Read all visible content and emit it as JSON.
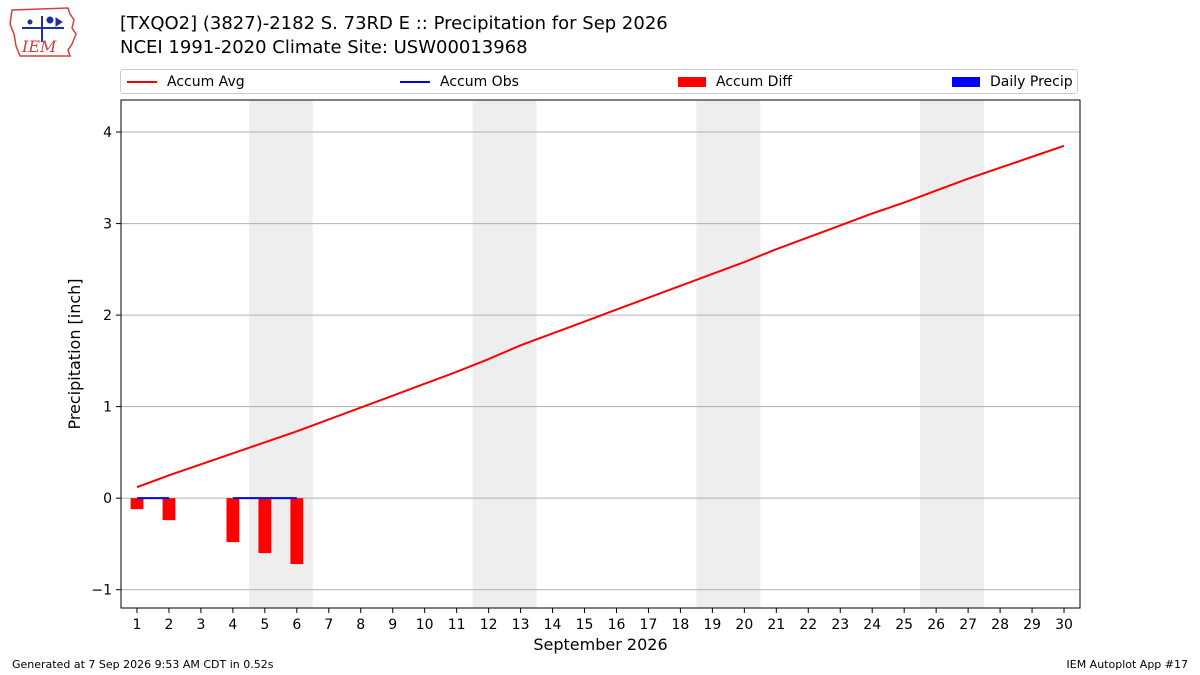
{
  "header": {
    "title_line1": "[TXQO2] (3827)-2182 S. 73RD E :: Precipitation for Sep 2026",
    "title_line2": "NCEI 1991-2020 Climate Site: USW00013968",
    "logo_text": "IEM"
  },
  "footer": {
    "left": "Generated at 7 Sep 2026 9:53 AM CDT in 0.52s",
    "right": "IEM Autoplot App #17"
  },
  "colors": {
    "accum_avg": "#ff0000",
    "accum_obs": "#0000ff",
    "accum_diff": "#ff0000",
    "daily_precip": "#0000ff",
    "weekend_shade": "#eeeeee",
    "grid": "#b0b0b0"
  },
  "chart_data": {
    "type": "line",
    "title": "[TXQO2] (3827)-2182 S. 73RD E :: Precipitation for Sep 2026",
    "subtitle": "NCEI 1991-2020 Climate Site: USW00013968",
    "xlabel": "September 2026",
    "ylabel": "Precipitation [inch]",
    "xlim": [
      0.5,
      30.5
    ],
    "ylim": [
      -1.2,
      4.35
    ],
    "x_ticks": [
      1,
      2,
      3,
      4,
      5,
      6,
      7,
      8,
      9,
      10,
      11,
      12,
      13,
      14,
      15,
      16,
      17,
      18,
      19,
      20,
      21,
      22,
      23,
      24,
      25,
      26,
      27,
      28,
      29,
      30
    ],
    "y_ticks": [
      -1,
      0,
      1,
      2,
      3,
      4
    ],
    "y_tick_labels": [
      "−1",
      "0",
      "1",
      "2",
      "3",
      "4"
    ],
    "grid": "horizontal",
    "legend_placement": "top",
    "weekend_shading": [
      [
        5,
        6
      ],
      [
        12,
        13
      ],
      [
        19,
        20
      ],
      [
        26,
        27
      ]
    ],
    "series": [
      {
        "name": "Accum Avg",
        "type": "line",
        "x": [
          1,
          2,
          3,
          4,
          5,
          6,
          7,
          8,
          9,
          10,
          11,
          12,
          13,
          14,
          15,
          16,
          17,
          18,
          19,
          20,
          21,
          22,
          23,
          24,
          25,
          26,
          27,
          28,
          29,
          30
        ],
        "values": [
          0.12,
          0.25,
          0.37,
          0.49,
          0.61,
          0.73,
          0.86,
          0.99,
          1.12,
          1.25,
          1.38,
          1.52,
          1.67,
          1.8,
          1.93,
          2.06,
          2.19,
          2.32,
          2.45,
          2.58,
          2.72,
          2.85,
          2.98,
          3.11,
          3.23,
          3.36,
          3.49,
          3.61,
          3.73,
          3.85
        ]
      },
      {
        "name": "Accum Obs",
        "type": "line",
        "x": [
          1,
          2,
          3,
          4,
          5,
          6
        ],
        "values": [
          0,
          0,
          null,
          0,
          0,
          0
        ]
      },
      {
        "name": "Accum Diff",
        "type": "bar",
        "x": [
          1,
          2,
          3,
          4,
          5,
          6
        ],
        "values": [
          -0.12,
          -0.24,
          0,
          -0.48,
          -0.6,
          -0.72
        ]
      },
      {
        "name": "Daily Precip",
        "type": "bar",
        "x": [],
        "values": []
      }
    ]
  }
}
